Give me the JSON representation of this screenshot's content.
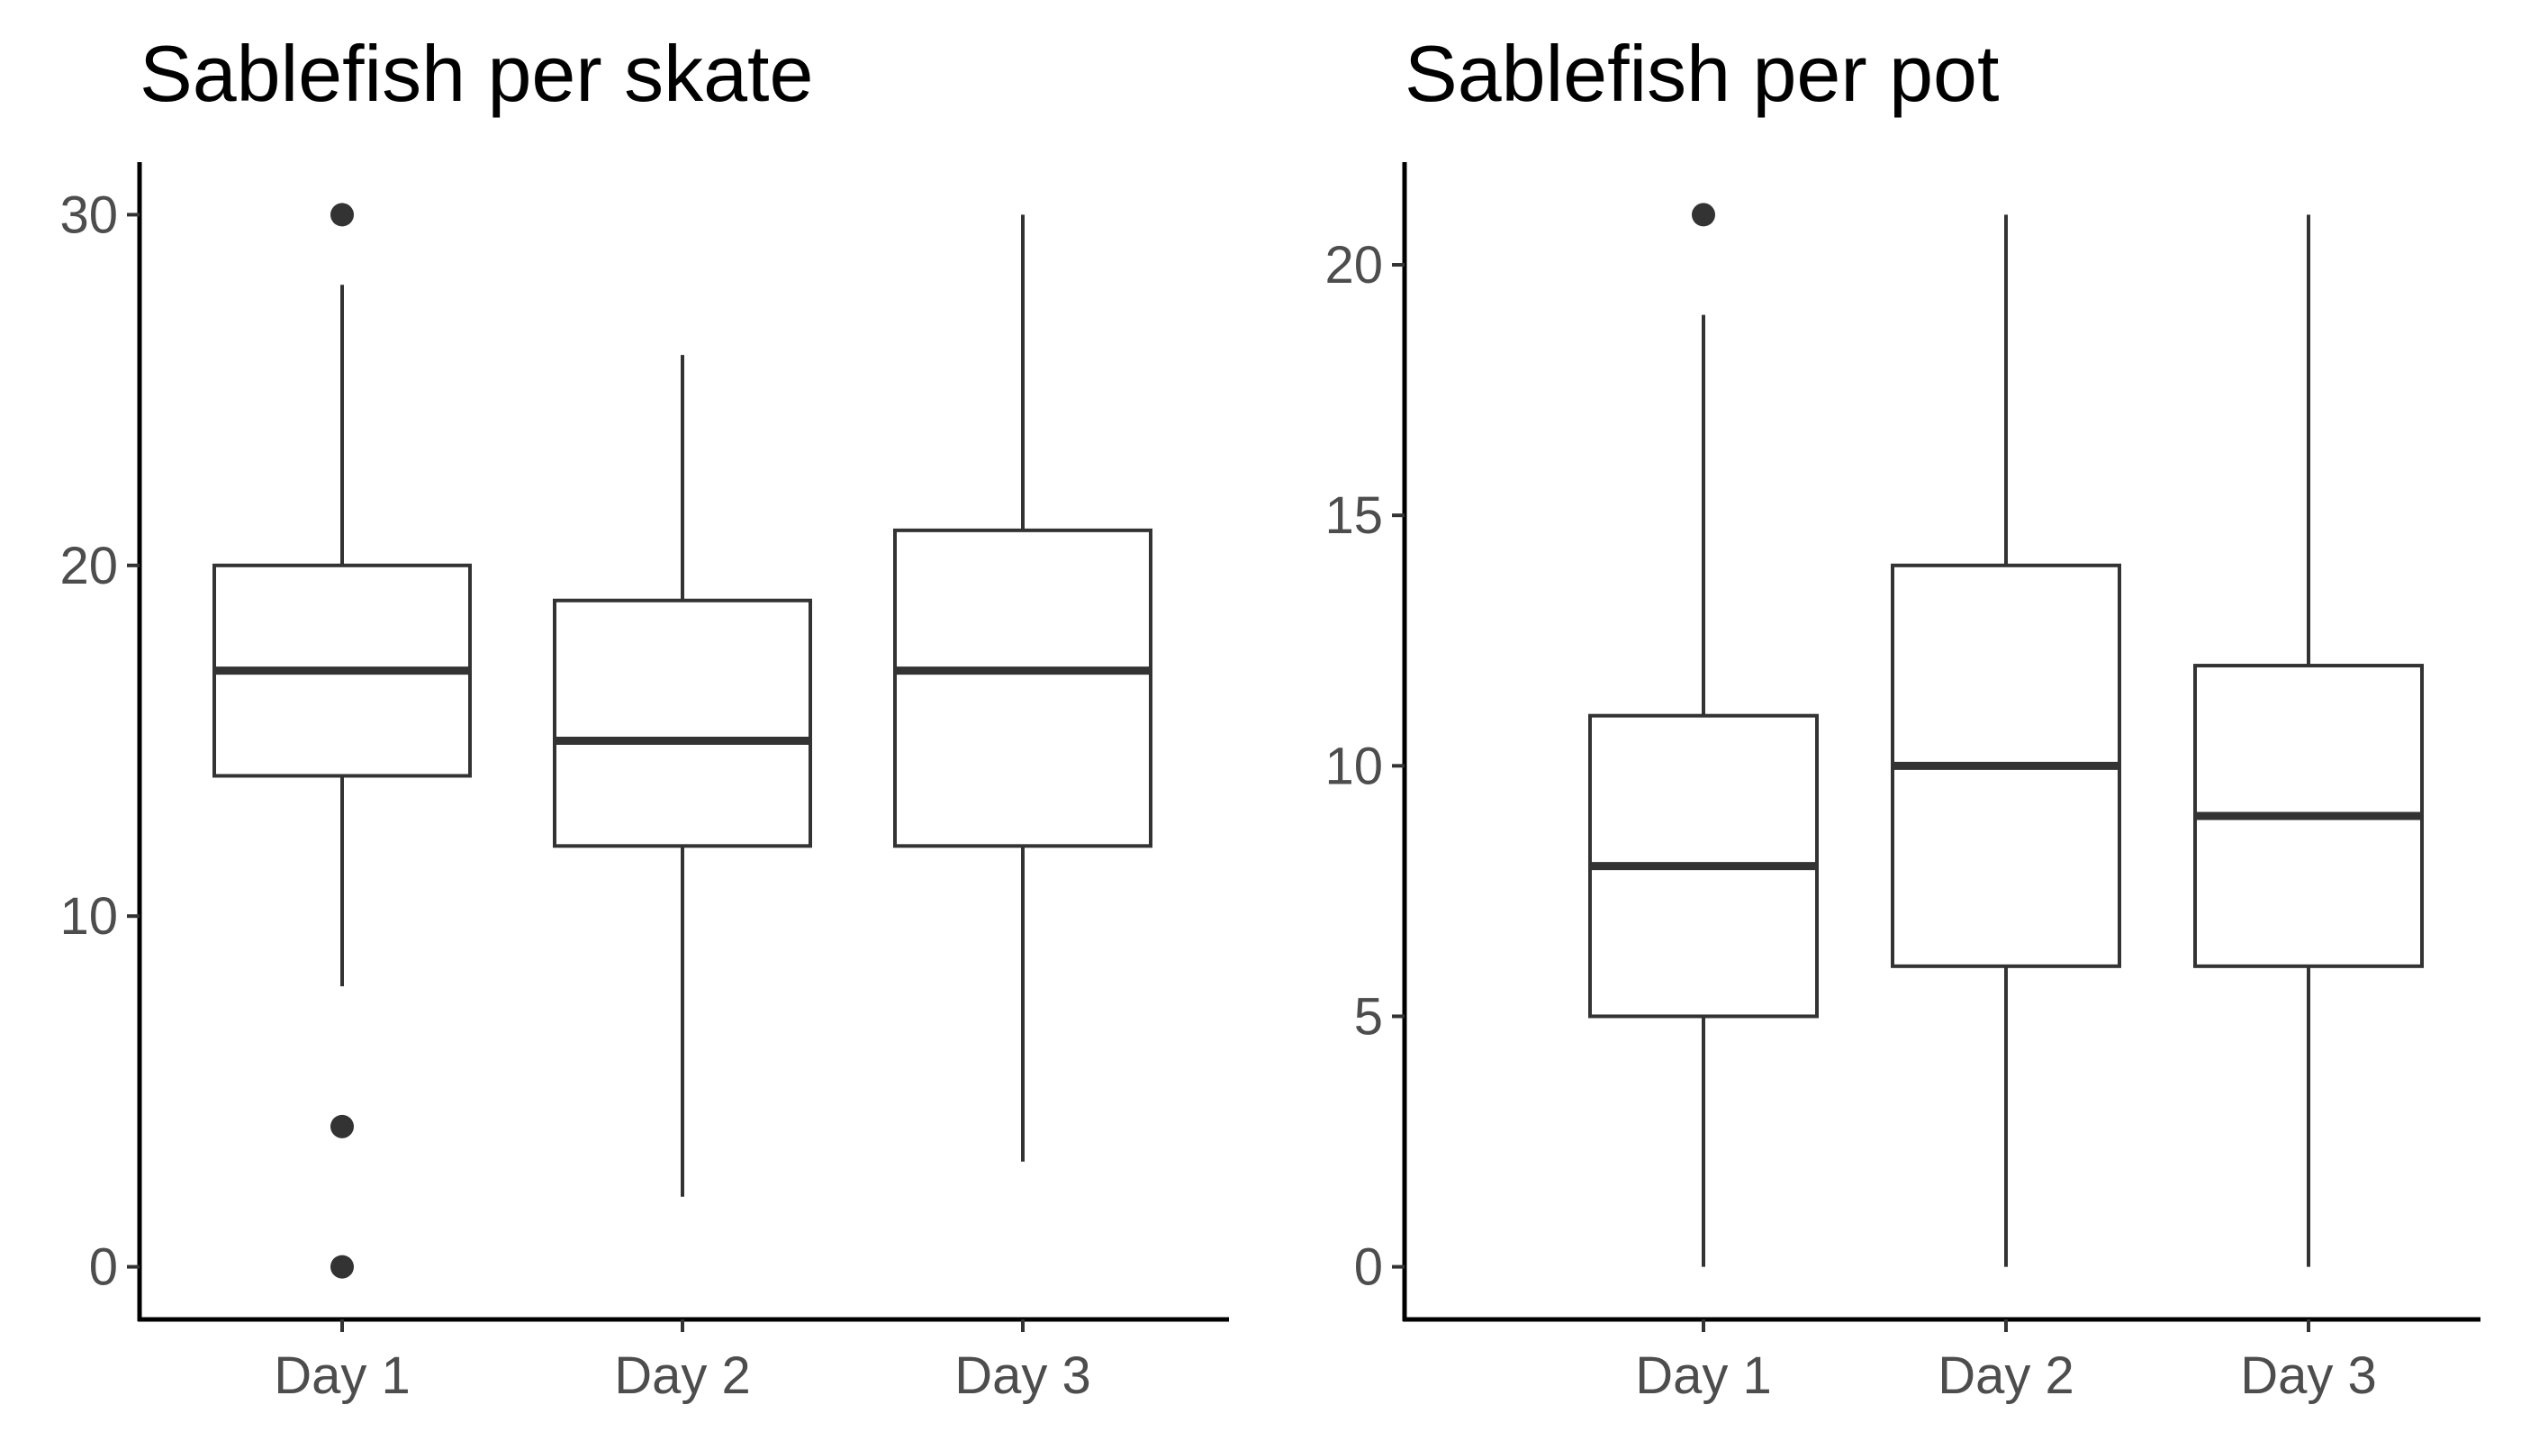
{
  "chart_data": [
    {
      "type": "box",
      "title": "Sablefish per skate",
      "xlabel": "",
      "ylabel": "",
      "ylim": [
        -1.5,
        31.5
      ],
      "yticks": [
        0,
        10,
        20,
        30
      ],
      "grid": false,
      "categories": [
        "Day 1",
        "Day 2",
        "Day 3"
      ],
      "boxes": [
        {
          "category": "Day 1",
          "min": 8,
          "q1": 14,
          "median": 17,
          "q3": 20,
          "max": 28,
          "outliers": [
            30,
            4,
            0
          ]
        },
        {
          "category": "Day 2",
          "min": 2,
          "q1": 12,
          "median": 15,
          "q3": 19,
          "max": 26,
          "outliers": []
        },
        {
          "category": "Day 3",
          "min": 3,
          "q1": 12,
          "median": 17,
          "q3": 21,
          "max": 30,
          "outliers": []
        }
      ]
    },
    {
      "type": "box",
      "title": "Sablefish per pot",
      "xlabel": "",
      "ylabel": "",
      "ylim": [
        -1.05,
        22.05
      ],
      "yticks": [
        0,
        5,
        10,
        15,
        20
      ],
      "grid": false,
      "categories": [
        "Day 1",
        "Day 2",
        "Day 3"
      ],
      "boxes": [
        {
          "category": "Day 1",
          "min": 0,
          "q1": 5,
          "median": 8,
          "q3": 11,
          "max": 19,
          "outliers": [
            21
          ]
        },
        {
          "category": "Day 2",
          "min": 0,
          "q1": 6,
          "median": 10,
          "q3": 14,
          "max": 21,
          "outliers": []
        },
        {
          "category": "Day 3",
          "min": 0,
          "q1": 6,
          "median": 9,
          "q3": 12,
          "max": 21,
          "outliers": []
        }
      ]
    }
  ]
}
